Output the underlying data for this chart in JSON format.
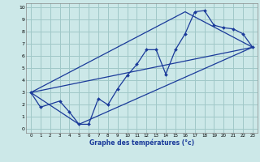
{
  "xlabel": "Graphe des températures (°c)",
  "bg_color": "#cce8e8",
  "grid_color": "#a0c8c8",
  "line_color": "#1a3a9a",
  "xlim": [
    -0.5,
    23.5
  ],
  "ylim": [
    -0.3,
    10.3
  ],
  "xticks": [
    0,
    1,
    2,
    3,
    4,
    5,
    6,
    7,
    8,
    9,
    10,
    11,
    12,
    13,
    14,
    15,
    16,
    17,
    18,
    19,
    20,
    21,
    22,
    23
  ],
  "yticks": [
    0,
    1,
    2,
    3,
    4,
    5,
    6,
    7,
    8,
    9,
    10
  ],
  "temp_x": [
    0,
    1,
    3,
    4,
    5,
    6,
    7,
    8,
    9,
    10,
    11,
    12,
    13,
    14,
    15,
    16,
    17,
    18,
    19,
    20,
    21,
    22,
    23
  ],
  "temp_y": [
    3.0,
    1.8,
    2.3,
    1.4,
    0.4,
    0.4,
    2.5,
    2.0,
    3.3,
    4.4,
    5.3,
    6.5,
    6.5,
    4.5,
    6.5,
    7.8,
    9.6,
    9.7,
    8.5,
    8.3,
    8.2,
    7.8,
    6.7
  ],
  "line1_x": [
    0,
    23
  ],
  "line1_y": [
    3.0,
    6.7
  ],
  "line2_x": [
    0,
    5,
    23
  ],
  "line2_y": [
    3.0,
    0.4,
    6.7
  ],
  "line3_x": [
    0,
    16,
    23
  ],
  "line3_y": [
    3.0,
    9.6,
    6.7
  ]
}
